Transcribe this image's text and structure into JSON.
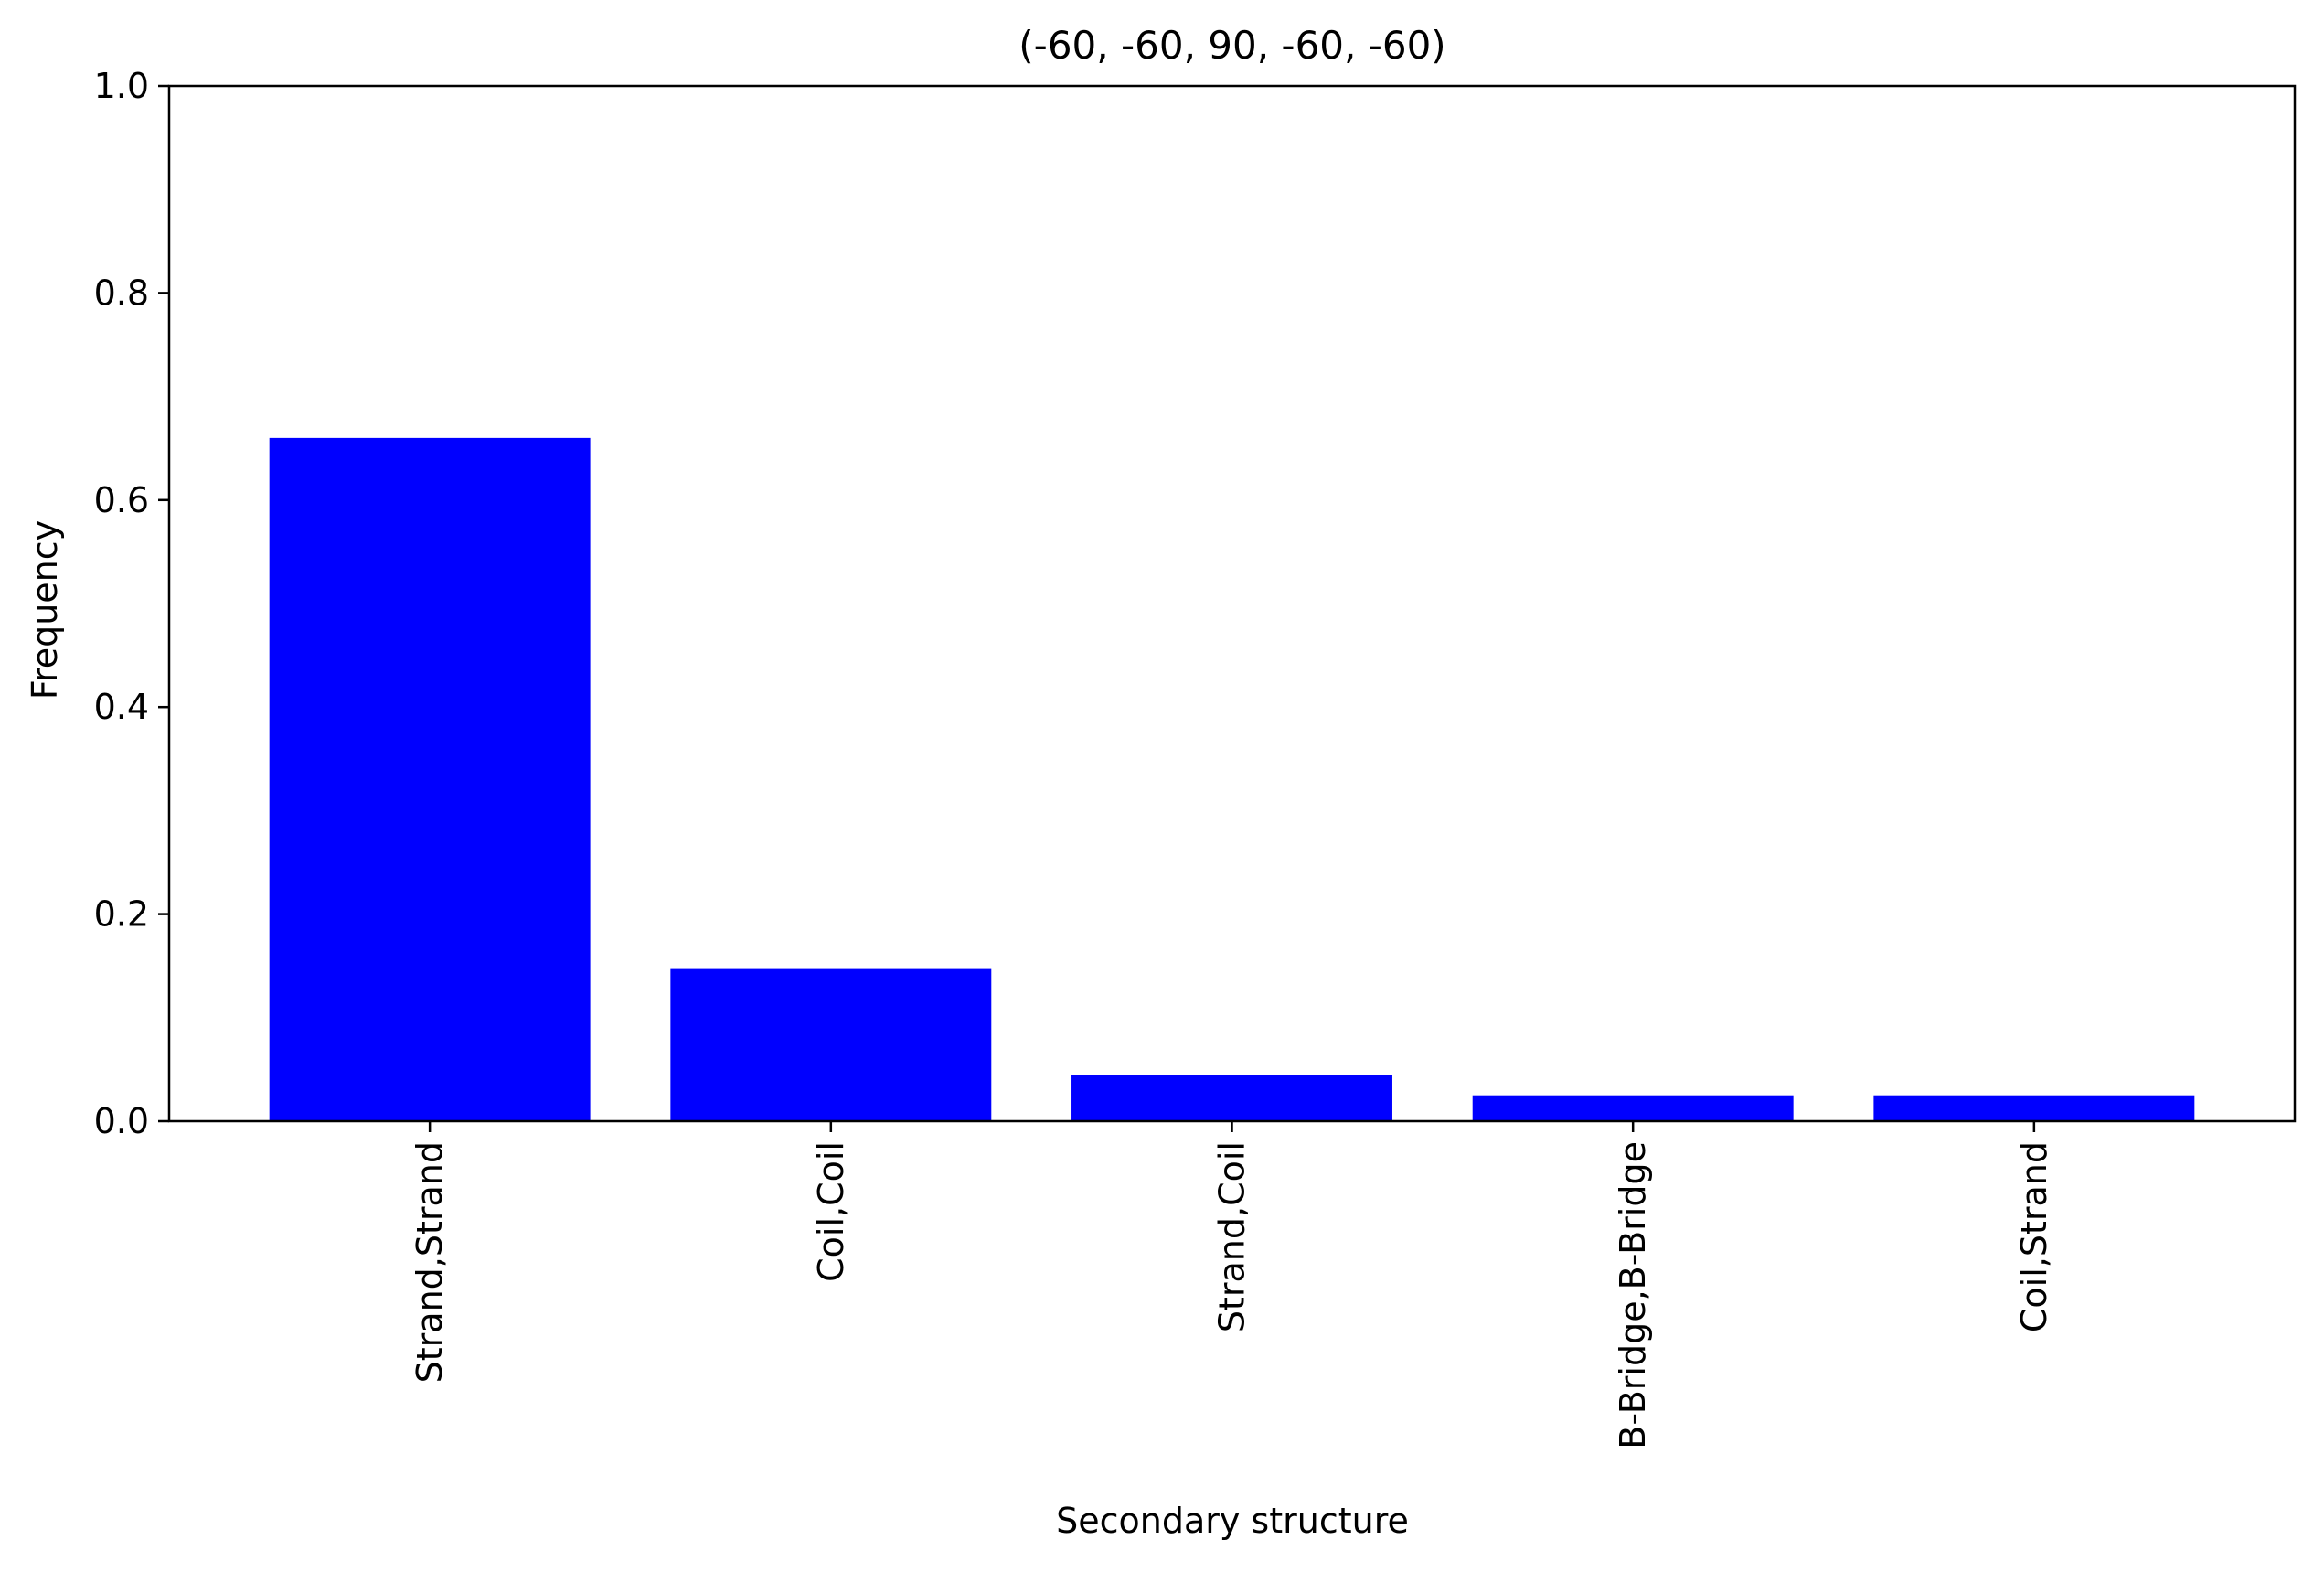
{
  "chart_data": {
    "type": "bar",
    "title": "(-60, -60, 90, -60, -60)",
    "xlabel": "Secondary structure",
    "ylabel": "Frequency",
    "categories": [
      "Strand,Strand",
      "Coil,Coil",
      "Strand,Coil",
      "B-Bridge,B-Bridge",
      "Coil,Strand"
    ],
    "values": [
      0.66,
      0.147,
      0.045,
      0.025,
      0.025
    ],
    "ylim": [
      0,
      1.0
    ],
    "yticks": [
      0.0,
      0.2,
      0.4,
      0.6,
      0.8,
      1.0
    ],
    "ytick_labels": [
      "0.0",
      "0.2",
      "0.4",
      "0.6",
      "0.8",
      "1.0"
    ],
    "grid": false,
    "bar_color": "#0000ff",
    "xtick_rotation": "vertical"
  }
}
